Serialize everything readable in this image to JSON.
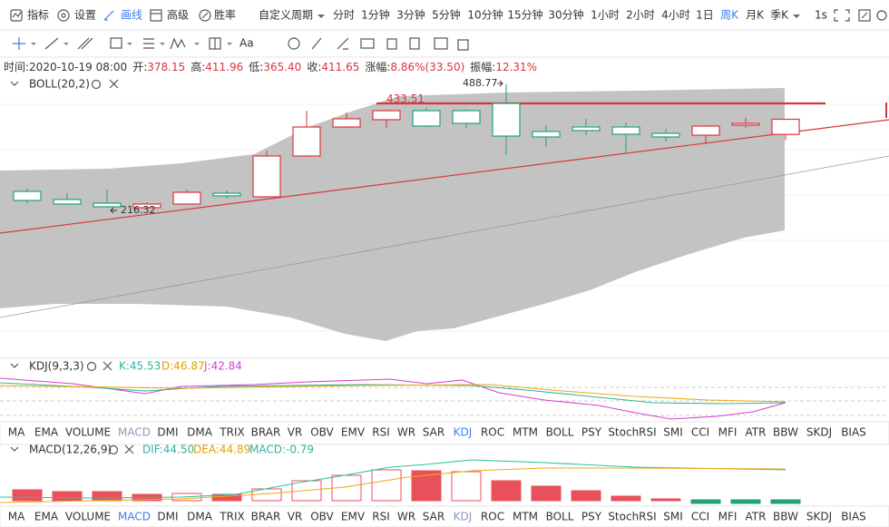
{
  "toolbar": {
    "items": [
      "指标",
      "设置",
      "画线",
      "高级",
      "胜率"
    ],
    "active_item": "画线",
    "periods": [
      "自定义周期",
      "分时",
      "1分钟",
      "3分钟",
      "5分钟",
      "10分钟",
      "15分钟",
      "30分钟",
      "1小时",
      "2小时",
      "4小时",
      "1日",
      "周K",
      "月K",
      "季K"
    ],
    "active_period": "周K",
    "speed": "1s"
  },
  "info": [
    {
      "label": "时间:",
      "value": "2020-10-19 08:00"
    },
    {
      "label": "开:",
      "value": "378.15"
    },
    {
      "label": "高:",
      "value": "411.96"
    },
    {
      "label": "低:",
      "value": "365.40"
    },
    {
      "label": "收:",
      "value": "411.65"
    },
    {
      "label": "涨幅:",
      "value": "8.86%(33.50)"
    },
    {
      "label": "振幅:",
      "value": "12.31%"
    }
  ],
  "main": {
    "label": "BOLL(20,2)",
    "high_marker": 433.51,
    "peak": 488.77,
    "low": 216.32,
    "up_color": "#d9363e",
    "down_color": "#22a07c",
    "candles": [
      {
        "open": 252.4,
        "high": 258.4,
        "low": 226.4,
        "close": 232.4
      },
      {
        "open": 234.4,
        "high": 248.4,
        "low": 224.4,
        "close": 224.4
      },
      {
        "open": 226.4,
        "high": 256.4,
        "low": 216.32,
        "close": 218.4
      },
      {
        "open": 216.4,
        "high": 228.4,
        "low": 218.4,
        "close": 224.4
      },
      {
        "open": 224.4,
        "high": 256.4,
        "low": 224.4,
        "close": 250.4
      },
      {
        "open": 248.4,
        "high": 254.4,
        "low": 236.4,
        "close": 242.4
      },
      {
        "open": 240.4,
        "high": 342.6,
        "low": 240.4,
        "close": 330.5
      },
      {
        "open": 330.5,
        "high": 430.6,
        "low": 328.5,
        "close": 394.6
      },
      {
        "open": 394.6,
        "high": 426.7,
        "low": 392.6,
        "close": 412.7
      },
      {
        "open": 410.7,
        "high": 433.51,
        "low": 392.6,
        "close": 430.6
      },
      {
        "open": 430.6,
        "high": 437.0,
        "low": 394.6,
        "close": 396.6
      },
      {
        "open": 430.6,
        "high": 434.0,
        "low": 392.6,
        "close": 402.6
      },
      {
        "open": 446.7,
        "high": 488.77,
        "low": 332.5,
        "close": 374.5
      },
      {
        "open": 384.6,
        "high": 398.6,
        "low": 350.5,
        "close": 372.6
      },
      {
        "open": 394.6,
        "high": 412.7,
        "low": 376.5,
        "close": 386.6
      },
      {
        "open": 394.6,
        "high": 404.7,
        "low": 336.5,
        "close": 378.6
      },
      {
        "open": 380.6,
        "high": 390.6,
        "low": 362.6,
        "close": 372.6
      },
      {
        "open": 376.5,
        "high": 398.6,
        "low": 356.5,
        "close": 396.6
      },
      {
        "open": 398.6,
        "high": 414.7,
        "low": 392.6,
        "close": 402.6
      },
      {
        "open": 378.15,
        "high": 411.96,
        "low": 365.4,
        "close": 411.65
      }
    ]
  },
  "kdj": {
    "label": "KDJ(9,3,3)",
    "k": "K:45.53",
    "d": "D:46.87",
    "j": "J:42.84"
  },
  "macd": {
    "label": "MACD(12,26,9)",
    "dif": "DIF:44.50",
    "dea": "DEA:44.89",
    "macd": "MACD:-0.79"
  },
  "tab_rows": [
    {
      "tabs": [
        "MA",
        "EMA",
        "VOLUME",
        "MACD",
        "DMI",
        "DMA",
        "TRIX",
        "BRAR",
        "VR",
        "OBV",
        "EMV",
        "RSI",
        "WR",
        "SAR",
        "KDJ",
        "ROC",
        "MTM",
        "BOLL",
        "PSY",
        "StochRSI",
        "SMI",
        "CCI",
        "MFI",
        "ATR",
        "BBW",
        "SKDJ",
        "BIAS"
      ],
      "active": "KDJ"
    },
    {
      "tabs": [
        "MA",
        "EMA",
        "VOLUME",
        "MACD",
        "DMI",
        "DMA",
        "TRIX",
        "BRAR",
        "VR",
        "OBV",
        "EMV",
        "RSI",
        "WR",
        "SAR",
        "KDJ",
        "ROC",
        "MTM",
        "BOLL",
        "PSY",
        "StochRSI",
        "SMI",
        "CCI",
        "MFI",
        "ATR",
        "BBW",
        "SKDJ",
        "BIAS"
      ],
      "active": "MACD"
    }
  ]
}
